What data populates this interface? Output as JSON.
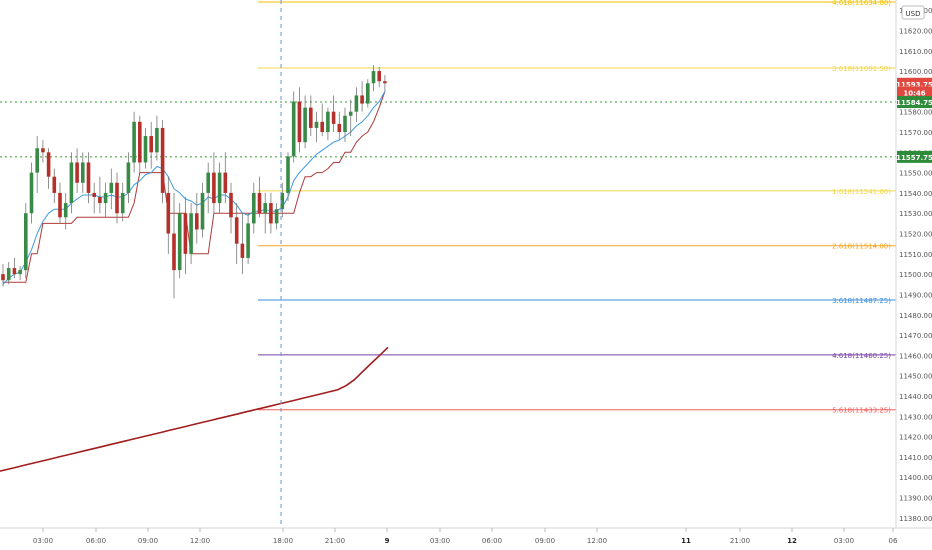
{
  "chart_data": {
    "type": "candlestick",
    "currency": "USD",
    "ylim": [
      11375,
      11635
    ],
    "x_tick_labels": [
      "03:00",
      "06:00",
      "09:00",
      "12:00",
      "18:00",
      "21:00",
      "9",
      "03:00",
      "06:00",
      "09:00",
      "12:00",
      "11",
      "21:00",
      "12",
      "03:00",
      "06"
    ],
    "y_ticks": [
      11380,
      11390,
      11400,
      11410,
      11420,
      11430,
      11440,
      11450,
      11460,
      11470,
      11480,
      11490,
      11500,
      11510,
      11520,
      11530,
      11540,
      11550,
      11560,
      11570,
      11580,
      11590,
      11600,
      11610,
      11620,
      11630
    ],
    "price_tags": [
      {
        "label": "11593.75",
        "value": 11593.75,
        "color": "#e0473f"
      },
      {
        "label": "10:46",
        "value": 11589.5,
        "color": "#e0473f"
      },
      {
        "label": "11584.75",
        "value": 11584.75,
        "color": "#2e8b3a"
      },
      {
        "label": "11557.75",
        "value": 11557.75,
        "color": "#2e8b3a"
      }
    ],
    "horizontal_levels": [
      {
        "value": 11584.75,
        "color": "#3a9a3a",
        "style": "dotted",
        "span": "full"
      },
      {
        "value": 11557.75,
        "color": "#3a9a3a",
        "style": "dotted",
        "span": "full"
      }
    ],
    "fib_levels": [
      {
        "ratio": "4.618",
        "label": "4.618(11634.00)",
        "value": 11634.0,
        "color": "#f2c200"
      },
      {
        "ratio": "3.618",
        "label": "3.618(11601.50)",
        "value": 11601.5,
        "color": "#f2d64a"
      },
      {
        "ratio": "1.618",
        "label": "1.618(11541.00)",
        "value": 11541.0,
        "color": "#f2d64a"
      },
      {
        "ratio": "2.618",
        "label": "2.618(11514.00)",
        "value": 11514.0,
        "color": "#f5a623"
      },
      {
        "ratio": "3.618",
        "label": "3.618(11487.25)",
        "value": 11487.25,
        "color": "#3a8ee0"
      },
      {
        "ratio": "4.618",
        "label": "4.618(11460.25)",
        "value": 11460.25,
        "color": "#7a3fa6"
      },
      {
        "ratio": "5.618",
        "label": "5.618(11433.25)",
        "value": 11433.25,
        "color": "#f06060"
      }
    ],
    "candles": [
      [
        11500,
        11505,
        11494,
        11497
      ],
      [
        11497,
        11506,
        11495,
        11503
      ],
      [
        11503,
        11508,
        11498,
        11500
      ],
      [
        11500,
        11504,
        11497,
        11502
      ],
      [
        11502,
        11535,
        11498,
        11530
      ],
      [
        11530,
        11555,
        11525,
        11550
      ],
      [
        11550,
        11568,
        11540,
        11562
      ],
      [
        11562,
        11566,
        11555,
        11560
      ],
      [
        11560,
        11562,
        11542,
        11548
      ],
      [
        11548,
        11552,
        11535,
        11540
      ],
      [
        11540,
        11545,
        11525,
        11528
      ],
      [
        11528,
        11540,
        11522,
        11535
      ],
      [
        11535,
        11560,
        11530,
        11555
      ],
      [
        11555,
        11562,
        11540,
        11545
      ],
      [
        11545,
        11560,
        11540,
        11555
      ],
      [
        11555,
        11560,
        11535,
        11540
      ],
      [
        11540,
        11545,
        11530,
        11538
      ],
      [
        11538,
        11548,
        11530,
        11535
      ],
      [
        11535,
        11545,
        11528,
        11540
      ],
      [
        11540,
        11552,
        11532,
        11545
      ],
      [
        11545,
        11550,
        11525,
        11530
      ],
      [
        11530,
        11545,
        11526,
        11540
      ],
      [
        11540,
        11560,
        11535,
        11555
      ],
      [
        11555,
        11580,
        11550,
        11575
      ],
      [
        11575,
        11578,
        11550,
        11555
      ],
      [
        11555,
        11572,
        11552,
        11568
      ],
      [
        11568,
        11575,
        11552,
        11560
      ],
      [
        11560,
        11578,
        11556,
        11572
      ],
      [
        11572,
        11576,
        11535,
        11540
      ],
      [
        11540,
        11548,
        11510,
        11520
      ],
      [
        11520,
        11540,
        11488,
        11502
      ],
      [
        11502,
        11535,
        11498,
        11530
      ],
      [
        11530,
        11538,
        11500,
        11510
      ],
      [
        11510,
        11535,
        11505,
        11530
      ],
      [
        11530,
        11540,
        11515,
        11522
      ],
      [
        11522,
        11545,
        11518,
        11540
      ],
      [
        11540,
        11555,
        11530,
        11550
      ],
      [
        11550,
        11560,
        11530,
        11535
      ],
      [
        11535,
        11555,
        11530,
        11550
      ],
      [
        11550,
        11560,
        11535,
        11540
      ],
      [
        11540,
        11545,
        11520,
        11528
      ],
      [
        11528,
        11535,
        11505,
        11515
      ],
      [
        11515,
        11530,
        11500,
        11508
      ],
      [
        11508,
        11530,
        11505,
        11525
      ],
      [
        11525,
        11545,
        11520,
        11540
      ],
      [
        11540,
        11548,
        11528,
        11530
      ],
      [
        11530,
        11540,
        11520,
        11535
      ],
      [
        11535,
        11540,
        11520,
        11525
      ],
      [
        11525,
        11535,
        11522,
        11532
      ],
      [
        11532,
        11545,
        11528,
        11540
      ],
      [
        11540,
        11560,
        11536,
        11558
      ],
      [
        11558,
        11590,
        11555,
        11585
      ],
      [
        11585,
        11592,
        11560,
        11565
      ],
      [
        11565,
        11588,
        11562,
        11582
      ],
      [
        11582,
        11588,
        11568,
        11572
      ],
      [
        11572,
        11580,
        11565,
        11575
      ],
      [
        11575,
        11584,
        11568,
        11570
      ],
      [
        11570,
        11582,
        11566,
        11580
      ],
      [
        11580,
        11588,
        11570,
        11574
      ],
      [
        11574,
        11580,
        11566,
        11570
      ],
      [
        11570,
        11582,
        11565,
        11578
      ],
      [
        11578,
        11586,
        11568,
        11580
      ],
      [
        11580,
        11592,
        11575,
        11588
      ],
      [
        11588,
        11595,
        11580,
        11584
      ],
      [
        11584,
        11596,
        11582,
        11594
      ],
      [
        11594,
        11603,
        11590,
        11600
      ],
      [
        11600,
        11602,
        11592,
        11595
      ],
      [
        11595,
        11598,
        11590,
        11594
      ]
    ],
    "ema_line": [
      11495,
      11498,
      11500,
      11501,
      11506,
      11512,
      11520,
      11526,
      11530,
      11532,
      11532,
      11532,
      11535,
      11537,
      11539,
      11539,
      11539,
      11538,
      11538,
      11539,
      11538,
      11538,
      11540,
      11544,
      11546,
      11549,
      11550,
      11553,
      11552,
      11548,
      11542,
      11540,
      11537,
      11536,
      11534,
      11535,
      11538,
      11537,
      11539,
      11539,
      11537,
      11534,
      11530,
      11529,
      11531,
      11531,
      11532,
      11531,
      11531,
      11533,
      11538,
      11546,
      11550,
      11553,
      11556,
      11559,
      11561,
      11563,
      11565,
      11566,
      11568,
      11570,
      11573,
      11575,
      11578,
      11582,
      11585,
      11590
    ],
    "stop_line": [
      11496,
      11496,
      11496,
      11496,
      11496,
      11510,
      11510,
      11525,
      11525,
      11525,
      11525,
      11525,
      11525,
      11528,
      11528,
      11528,
      11528,
      11528,
      11528,
      11528,
      11528,
      11528,
      11528,
      11535,
      11550,
      11550,
      11550,
      11550,
      11550,
      11530,
      11530,
      11530,
      11530,
      11510,
      11510,
      11510,
      11510,
      11530,
      11530,
      11530,
      11530,
      11530,
      11530,
      11530,
      11530,
      11530,
      11530,
      11530,
      11530,
      11530,
      11530,
      11530,
      11540,
      11548,
      11548,
      11550,
      11550,
      11552,
      11555,
      11555,
      11560,
      11560,
      11565,
      11568,
      11570,
      11575,
      11582,
      11590
    ],
    "long_avg_line": [
      11403,
      11404,
      11405,
      11406,
      11407,
      11408,
      11409,
      11410,
      11411,
      11412,
      11413,
      11414,
      11415,
      11416,
      11417,
      11418,
      11419,
      11420,
      11421,
      11422,
      11423,
      11424,
      11425,
      11426,
      11427,
      11428,
      11429,
      11430,
      11431,
      11432,
      11433,
      11434,
      11435,
      11436,
      11437,
      11438,
      11439,
      11440,
      11441,
      11442,
      11443,
      11445,
      11448,
      11452,
      11456,
      11460,
      11464
    ]
  }
}
